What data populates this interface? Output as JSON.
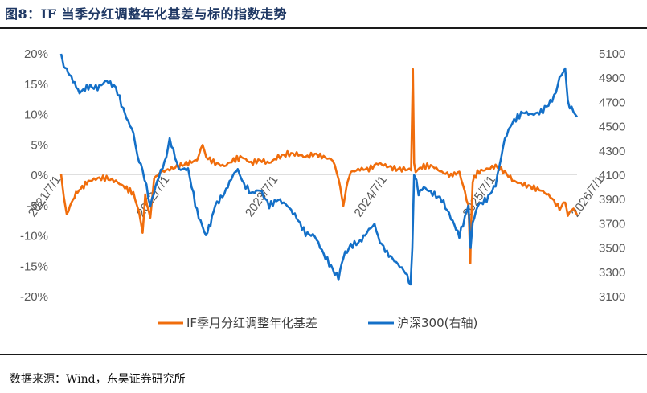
{
  "header": {
    "title": "图8：IF 当季分红调整年化基差与标的指数走势"
  },
  "footer": {
    "source": "数据来源：Wind，东吴证券研究所"
  },
  "colors": {
    "basis": "#f06d0c",
    "index": "#1470c8",
    "axis": "#595959",
    "title": "#1f3864"
  },
  "chart_data": {
    "type": "line",
    "title": "",
    "xlabel": "",
    "ylabel": "",
    "grid": false,
    "legend_position": "bottom",
    "x_ticks": [
      "2021/7/1",
      "2022/7/1",
      "2023/7/1",
      "2024/7/1",
      "2025/7/1",
      "2026/7/1"
    ],
    "y_left": {
      "ticks": [
        "20%",
        "15%",
        "10%",
        "5%",
        "0%",
        "-5%",
        "-10%",
        "-15%",
        "-20%"
      ],
      "range": [
        -20,
        20
      ]
    },
    "y_right": {
      "ticks": [
        "5100",
        "4900",
        "4700",
        "4500",
        "4300",
        "4100",
        "3900",
        "3700",
        "3500",
        "3300",
        "3100"
      ],
      "range": [
        3100,
        5100
      ]
    },
    "series": [
      {
        "name": "IF季月分红调整年化基差",
        "axis": "left",
        "unit": "%",
        "color": "#f06d0c",
        "x": [
          "2021-07-01",
          "2021-07-05",
          "2021-07-10",
          "2021-07-20",
          "2021-08-05",
          "2021-08-20",
          "2021-09-10",
          "2021-10-01",
          "2021-11-01",
          "2021-12-01",
          "2022-01-01",
          "2022-02-01",
          "2022-03-01",
          "2022-03-20",
          "2022-04-01",
          "2022-04-10",
          "2022-04-27",
          "2022-05-10",
          "2022-06-01",
          "2022-07-01",
          "2022-08-01",
          "2022-09-01",
          "2022-10-01",
          "2022-10-20",
          "2022-11-01",
          "2022-12-01",
          "2023-01-01",
          "2023-02-01",
          "2023-03-01",
          "2023-04-01",
          "2023-05-01",
          "2023-06-01",
          "2023-07-01",
          "2023-08-01",
          "2023-09-01",
          "2023-10-01",
          "2023-11-01",
          "2023-12-01",
          "2024-01-01",
          "2024-01-20",
          "2024-02-05",
          "2024-02-20",
          "2024-03-01",
          "2024-04-01",
          "2024-05-01",
          "2024-06-01",
          "2024-07-01",
          "2024-08-01",
          "2024-09-01",
          "2024-09-20",
          "2024-09-26",
          "2024-09-30",
          "2024-10-05",
          "2024-10-15",
          "2024-11-01",
          "2024-12-01",
          "2025-01-01",
          "2025-02-01",
          "2025-03-01",
          "2025-04-01",
          "2025-04-07",
          "2025-04-09",
          "2025-04-15",
          "2025-05-01",
          "2025-06-01",
          "2025-07-01",
          "2025-08-01",
          "2025-09-01",
          "2025-10-01",
          "2025-11-01",
          "2025-12-01",
          "2026-01-01",
          "2026-02-01",
          "2026-02-20",
          "2026-03-01",
          "2026-03-20",
          "2026-04-01"
        ],
        "y": [
          0.2,
          -1.5,
          -3.5,
          -6.5,
          -4.5,
          -3.0,
          -2.0,
          -1.0,
          -0.5,
          -0.5,
          -1.0,
          -2.0,
          -3.0,
          -6.0,
          -9.5,
          -3.5,
          -7.0,
          -0.5,
          0.5,
          1.0,
          1.5,
          2.0,
          2.5,
          5.0,
          3.0,
          2.0,
          1.5,
          2.5,
          3.0,
          2.0,
          2.5,
          2.0,
          3.0,
          3.5,
          3.5,
          3.0,
          3.5,
          3.0,
          2.5,
          -0.5,
          -5.0,
          -1.0,
          0.5,
          1.0,
          1.0,
          2.0,
          1.5,
          1.0,
          1.0,
          0.8,
          17.5,
          2.0,
          0.5,
          1.0,
          1.5,
          1.5,
          0.5,
          0.0,
          0.5,
          -5.0,
          -14.5,
          -9.0,
          -1.0,
          0.5,
          1.0,
          1.5,
          0.5,
          -1.0,
          -1.5,
          -2.0,
          -2.5,
          -3.5,
          -5.5,
          -4.5,
          -6.5,
          -5.5,
          -6.5
        ]
      },
      {
        "name": "沪深300(右轴)",
        "axis": "right",
        "color": "#1470c8",
        "x": [
          "2021-07-01",
          "2021-07-10",
          "2021-07-25",
          "2021-08-10",
          "2021-09-01",
          "2021-10-01",
          "2021-11-01",
          "2021-12-01",
          "2022-01-01",
          "2022-02-01",
          "2022-03-01",
          "2022-03-15",
          "2022-04-01",
          "2022-04-27",
          "2022-05-20",
          "2022-06-20",
          "2022-07-01",
          "2022-08-01",
          "2022-09-01",
          "2022-10-01",
          "2022-10-31",
          "2022-11-15",
          "2022-12-01",
          "2023-01-01",
          "2023-01-30",
          "2023-02-15",
          "2023-03-01",
          "2023-04-01",
          "2023-05-01",
          "2023-06-01",
          "2023-07-01",
          "2023-08-01",
          "2023-09-01",
          "2023-10-01",
          "2023-11-01",
          "2023-12-01",
          "2024-01-01",
          "2024-01-20",
          "2024-02-05",
          "2024-03-01",
          "2024-04-01",
          "2024-05-01",
          "2024-05-20",
          "2024-06-01",
          "2024-07-01",
          "2024-08-01",
          "2024-09-01",
          "2024-09-18",
          "2024-09-24",
          "2024-09-30",
          "2024-10-08",
          "2024-10-15",
          "2024-11-01",
          "2024-12-01",
          "2025-01-01",
          "2025-02-01",
          "2025-03-01",
          "2025-04-01",
          "2025-04-08",
          "2025-04-15",
          "2025-05-01",
          "2025-06-01",
          "2025-07-01",
          "2025-08-01",
          "2025-08-20",
          "2025-09-01",
          "2025-10-01",
          "2025-11-01",
          "2025-12-01",
          "2026-01-01",
          "2026-01-20",
          "2026-02-01",
          "2026-02-20",
          "2026-03-01",
          "2026-03-20",
          "2026-04-01"
        ],
        "y": [
          5100,
          5000,
          4950,
          4880,
          4780,
          4830,
          4820,
          4880,
          4820,
          4600,
          4450,
          4250,
          4150,
          3850,
          4050,
          4250,
          4400,
          4150,
          4150,
          3800,
          3600,
          3700,
          3850,
          3950,
          4100,
          4150,
          4050,
          3950,
          3980,
          3850,
          3900,
          3850,
          3750,
          3620,
          3600,
          3450,
          3320,
          3250,
          3430,
          3520,
          3550,
          3650,
          3700,
          3580,
          3460,
          3380,
          3300,
          3200,
          3500,
          4100,
          4060,
          3950,
          4000,
          3950,
          3900,
          3750,
          3600,
          3850,
          3500,
          3700,
          3850,
          3900,
          4020,
          4400,
          4500,
          4550,
          4620,
          4600,
          4620,
          4700,
          4780,
          4900,
          4980,
          4700,
          4620,
          4580
        ]
      }
    ]
  }
}
